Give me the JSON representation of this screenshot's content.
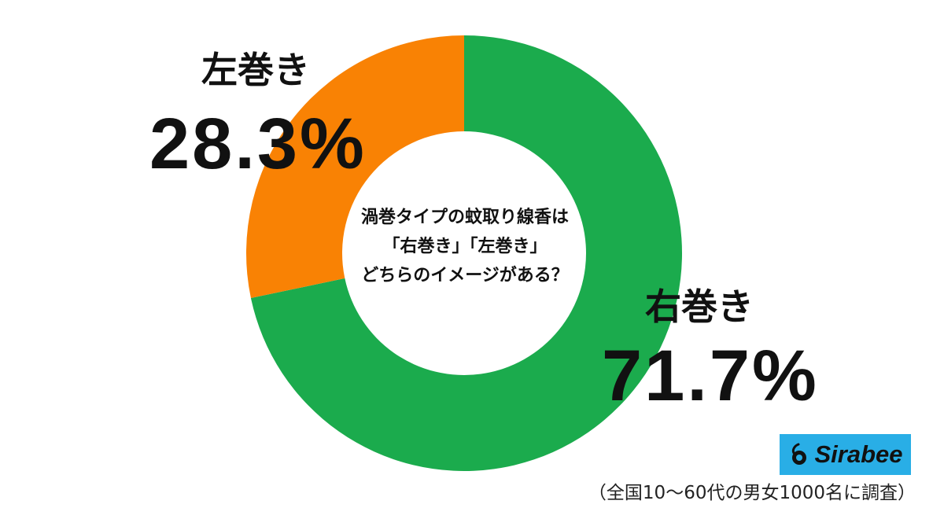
{
  "chart_data": {
    "type": "pie",
    "variant": "donut",
    "question_lines": [
      "渦巻タイプの蚊取り線香は",
      "「右巻き」「左巻き」",
      "どちらのイメージがある？"
    ],
    "slices": [
      {
        "label": "右巻き",
        "value": 71.7,
        "value_text": "71.7%",
        "color": "#1bab4d"
      },
      {
        "label": "左巻き",
        "value": 28.3,
        "value_text": "28.3%",
        "color": "#f98204"
      }
    ],
    "start": "12 o'clock",
    "direction": "clockwise",
    "legend": "none"
  },
  "brand": {
    "name": "Sirabee",
    "color": "#29aee6",
    "icon": "sirabee-logo-icon"
  },
  "footnote": "（全国10～60代の男女1000名に調査）"
}
